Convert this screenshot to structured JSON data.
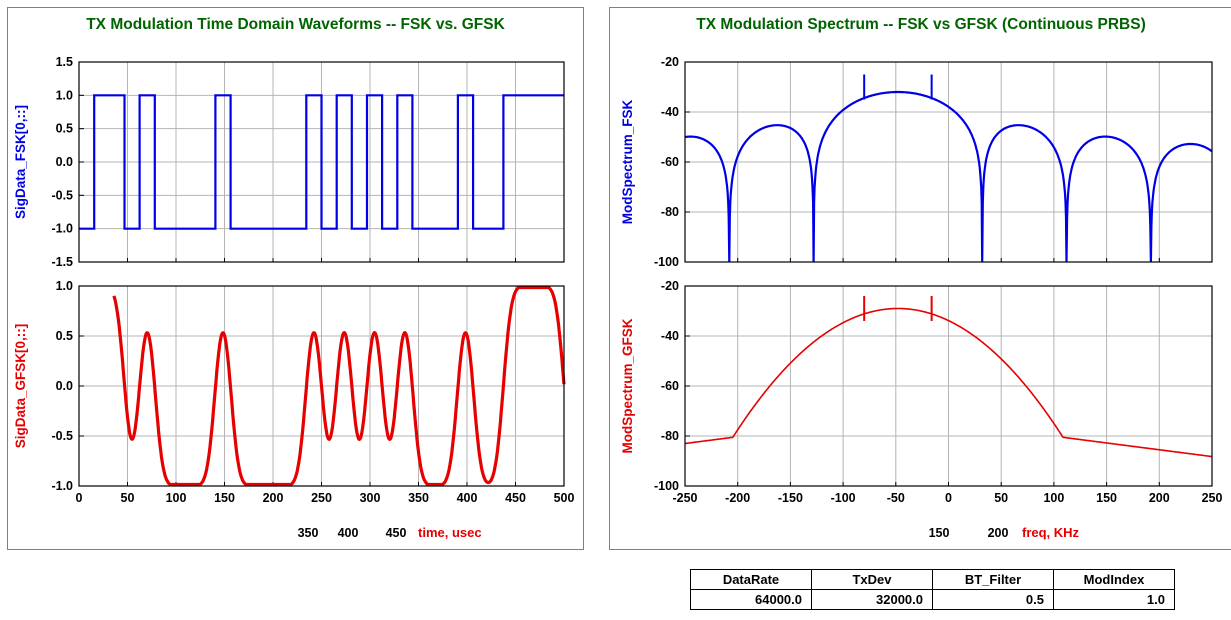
{
  "left_panel": {
    "title": "TX Modulation Time Domain Waveforms -- FSK vs. GFSK",
    "xlabel_ticks2": [
      "350",
      "400",
      "450"
    ],
    "xlabel_text": "time, usec"
  },
  "right_panel": {
    "title": "TX Modulation Spectrum -- FSK vs GFSK (Continuous PRBS)",
    "xlabel_ticks2": [
      "150",
      "200"
    ],
    "xlabel_text": "freq, KHz"
  },
  "params_table": {
    "headers": [
      "DataRate",
      "TxDev",
      "BT_Filter",
      "ModIndex"
    ],
    "values": [
      "64000.0",
      "32000.0",
      "0.5",
      "1.0"
    ]
  },
  "colors": {
    "fsk": "#0000e6",
    "gfsk": "#e60000",
    "title": "#006400",
    "grid": "#b4b4b4"
  },
  "chart_data": [
    {
      "type": "line",
      "ylabel": "SigData_FSK[0,::]",
      "xlim": [
        0,
        500
      ],
      "ylim": [
        -1.5,
        1.5
      ],
      "yticks": [
        "1.5",
        "1.0",
        "0.5",
        "0.0",
        "-0.5",
        "-1.0",
        "-1.5"
      ],
      "xticks": [
        0,
        50,
        100,
        150,
        200,
        250,
        300,
        350,
        400,
        450,
        500
      ],
      "bits_start": 0,
      "bit_period_us": 15.625,
      "bits": [
        -1,
        1,
        1,
        -1,
        1,
        -1,
        -1,
        -1,
        -1,
        1,
        -1,
        -1,
        -1,
        -1,
        -1,
        1,
        -1,
        1,
        -1,
        1,
        -1,
        1,
        -1,
        -1,
        -1,
        1,
        -1,
        -1,
        1,
        1,
        1,
        1,
        -1,
        1,
        1,
        -1,
        1
      ]
    },
    {
      "type": "line",
      "ylabel": "SigData_GFSK[0,::]",
      "xlim": [
        0,
        500
      ],
      "ylim": [
        -1.0,
        1.0
      ],
      "yticks": [
        "1.0",
        "0.5",
        "0.0",
        "-0.5",
        "-1.0"
      ],
      "xticks": [
        "0",
        "50",
        "100",
        "150",
        "200",
        "250",
        "300",
        "350",
        "400",
        "450",
        "500"
      ],
      "start_us": 36,
      "end_us": 500,
      "bit_period_us": 15.625,
      "bits": [
        -1,
        1,
        1,
        -1,
        1,
        -1,
        -1,
        -1,
        -1,
        1,
        -1,
        -1,
        -1,
        -1,
        -1,
        1,
        -1,
        1,
        -1,
        1,
        -1,
        1,
        -1,
        -1,
        -1,
        1,
        -1,
        -1,
        1,
        1,
        1,
        1,
        -1,
        1,
        1,
        -1,
        1
      ]
    },
    {
      "type": "line",
      "ylabel": "ModSpectrum_FSK",
      "xlim": [
        -250,
        250
      ],
      "ylim": [
        -100,
        -20
      ],
      "yticks": [
        "-20",
        "-40",
        "-60",
        "-80",
        "-100"
      ],
      "center_khz": -48,
      "peak_db": -32,
      "spur_khz": [
        -80,
        -16
      ],
      "spur_db": -25,
      "nulls_khz": [
        -224,
        -176,
        -128,
        32,
        80,
        128
      ]
    },
    {
      "type": "line",
      "ylabel": "ModSpectrum_GFSK",
      "xlim": [
        -250,
        250
      ],
      "ylim": [
        -100,
        -20
      ],
      "yticks": [
        "-20",
        "-40",
        "-60",
        "-80",
        "-100"
      ],
      "xticks": [
        "-250",
        "-200",
        "-150",
        "-100",
        "-50",
        "0",
        "50",
        "100",
        "150",
        "200",
        "250"
      ],
      "center_khz": -48,
      "peak_db": -29,
      "spur_khz": [
        -80,
        -16
      ],
      "spur_db": -24,
      "floor_edge_db": -83
    }
  ]
}
